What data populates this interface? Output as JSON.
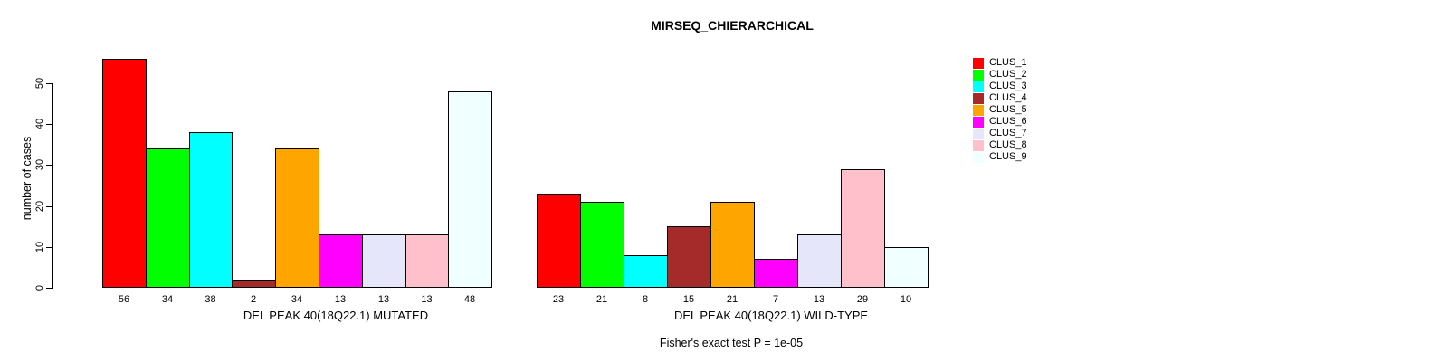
{
  "title": "MIRSEQ_CHIERARCHICAL",
  "subtitle": "Fisher's exact test P = 1e-05",
  "y_axis": {
    "label": "number of cases",
    "ticks": [
      0,
      10,
      20,
      30,
      40,
      50
    ]
  },
  "legend": {
    "items": [
      {
        "label": "CLUS_1",
        "color": "#FF0000"
      },
      {
        "label": "CLUS_2",
        "color": "#00FF00"
      },
      {
        "label": "CLUS_3",
        "color": "#00FFFF"
      },
      {
        "label": "CLUS_4",
        "color": "#A52A2A"
      },
      {
        "label": "CLUS_5",
        "color": "#FFA500"
      },
      {
        "label": "CLUS_6",
        "color": "#FF00FF"
      },
      {
        "label": "CLUS_7",
        "color": "#E6E6FA"
      },
      {
        "label": "CLUS_8",
        "color": "#FFC0CB"
      },
      {
        "label": "CLUS_9",
        "color": "#F0FFFF"
      }
    ]
  },
  "chart_data": {
    "type": "bar",
    "title": "MIRSEQ_CHIERARCHICAL",
    "ylabel": "number of cases",
    "ylim": [
      0,
      56
    ],
    "y_ticks": [
      0,
      10,
      20,
      30,
      40,
      50
    ],
    "grid": false,
    "legend_position": "right",
    "categories": [
      "CLUS_1",
      "CLUS_2",
      "CLUS_3",
      "CLUS_4",
      "CLUS_5",
      "CLUS_6",
      "CLUS_7",
      "CLUS_8",
      "CLUS_9"
    ],
    "colors": [
      "#FF0000",
      "#00FF00",
      "#00FFFF",
      "#A52A2A",
      "#FFA500",
      "#FF00FF",
      "#E6E6FA",
      "#FFC0CB",
      "#F0FFFF"
    ],
    "series": [
      {
        "name": "DEL PEAK 40(18Q22.1) MUTATED",
        "values": [
          56,
          34,
          38,
          2,
          34,
          13,
          13,
          13,
          48
        ]
      },
      {
        "name": "DEL PEAK 40(18Q22.1) WILD-TYPE",
        "values": [
          23,
          21,
          8,
          15,
          21,
          7,
          13,
          29,
          10
        ]
      }
    ],
    "bar_labels_shown": true,
    "annotation": "Fisher's exact test P = 1e-05"
  }
}
